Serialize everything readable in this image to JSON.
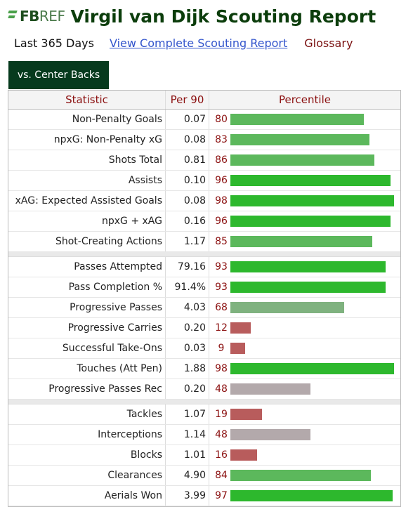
{
  "header": {
    "logo_bold": "FB",
    "logo_rest": "REF",
    "title": "Virgil van Dijk Scouting Report"
  },
  "subnav": {
    "period": "Last 365 Days",
    "link": "View Complete Scouting Report",
    "glossary": "Glossary"
  },
  "tab": {
    "label": "vs. Center Backs"
  },
  "table": {
    "headers": {
      "stat": "Statistic",
      "per90": "Per 90",
      "percentile": "Percentile"
    },
    "groups": [
      [
        {
          "stat": "Non-Penalty Goals",
          "per90": "0.07",
          "pct": 80
        },
        {
          "stat": "npxG: Non-Penalty xG",
          "per90": "0.08",
          "pct": 83
        },
        {
          "stat": "Shots Total",
          "per90": "0.81",
          "pct": 86
        },
        {
          "stat": "Assists",
          "per90": "0.10",
          "pct": 96
        },
        {
          "stat": "xAG: Expected Assisted Goals",
          "per90": "0.08",
          "pct": 98
        },
        {
          "stat": "npxG + xAG",
          "per90": "0.16",
          "pct": 96
        },
        {
          "stat": "Shot-Creating Actions",
          "per90": "1.17",
          "pct": 85
        }
      ],
      [
        {
          "stat": "Passes Attempted",
          "per90": "79.16",
          "pct": 93
        },
        {
          "stat": "Pass Completion %",
          "per90": "91.4%",
          "pct": 93
        },
        {
          "stat": "Progressive Passes",
          "per90": "4.03",
          "pct": 68
        },
        {
          "stat": "Progressive Carries",
          "per90": "0.20",
          "pct": 12
        },
        {
          "stat": "Successful Take-Ons",
          "per90": "0.03",
          "pct": 9
        },
        {
          "stat": "Touches (Att Pen)",
          "per90": "1.88",
          "pct": 98
        },
        {
          "stat": "Progressive Passes Rec",
          "per90": "0.20",
          "pct": 48
        }
      ],
      [
        {
          "stat": "Tackles",
          "per90": "1.07",
          "pct": 19
        },
        {
          "stat": "Interceptions",
          "per90": "1.14",
          "pct": 48
        },
        {
          "stat": "Blocks",
          "per90": "1.01",
          "pct": 16
        },
        {
          "stat": "Clearances",
          "per90": "4.90",
          "pct": 84
        },
        {
          "stat": "Aerials Won",
          "per90": "3.99",
          "pct": 97
        }
      ]
    ]
  },
  "colors": {
    "high": "#2db82d",
    "mid_high": "#5cb85c",
    "mid": "#7fb27f",
    "average": "#b3a9ab",
    "low": "#b85c5c"
  }
}
